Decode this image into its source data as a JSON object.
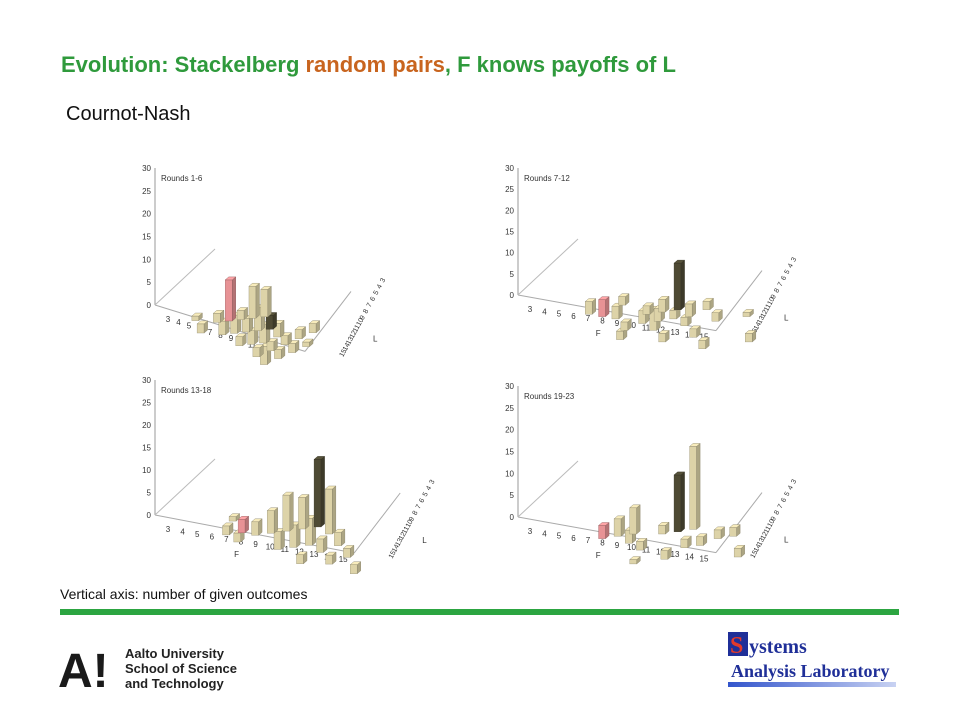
{
  "title": {
    "part1": "Evolution: Stackelberg ",
    "part2": "random pairs",
    "part3": ", F knows payoffs of L"
  },
  "subtitle": "Cournot-Nash",
  "footnote": "Vertical axis: number of given outcomes",
  "colors": {
    "title": "#2f9a3c",
    "title_highlight": "#c8641e",
    "bar_regular": "#ddd3a8",
    "bar_dark": "#4e4a34",
    "bar_highlight": "#e79295",
    "divider": "#2ca541"
  },
  "logos": {
    "aalto": {
      "mark": "A!",
      "lines": [
        "Aalto University",
        "School of Science",
        "and Technology"
      ]
    },
    "sal": {
      "big_letter": "S",
      "line1_rest": "ystems",
      "line2": "Analysis Laboratory"
    }
  },
  "chart_data": [
    {
      "type": "bar3d",
      "title": "Rounds 1-6",
      "xlabel": "",
      "ylabel": "L",
      "zlim": [
        0,
        30
      ],
      "z_ticks": [
        0,
        5,
        10,
        15,
        20,
        25,
        30
      ],
      "x_ticks": [
        "3",
        "4",
        "5",
        "6",
        "7",
        "8",
        "9",
        "10",
        "11",
        "12"
      ],
      "y_ticks": [
        "15",
        "14",
        "13",
        "12",
        "11",
        "10",
        "9",
        "8",
        "7",
        "6",
        "5",
        "4",
        "3"
      ],
      "bars": [
        {
          "f": 4,
          "l": 9,
          "v": 1
        },
        {
          "f": 5,
          "l": 11,
          "v": 2
        },
        {
          "f": 6,
          "l": 8,
          "v": 2
        },
        {
          "f": 7,
          "l": 7,
          "v": 9,
          "kind": "highlight"
        },
        {
          "f": 7,
          "l": 10,
          "v": 3
        },
        {
          "f": 8,
          "l": 6,
          "v": 2
        },
        {
          "f": 8,
          "l": 9,
          "v": 4
        },
        {
          "f": 9,
          "l": 5,
          "v": 7
        },
        {
          "f": 9,
          "l": 8,
          "v": 3
        },
        {
          "f": 9,
          "l": 11,
          "v": 2
        },
        {
          "f": 10,
          "l": 4,
          "v": 6
        },
        {
          "f": 10,
          "l": 7,
          "v": 5
        },
        {
          "f": 10,
          "l": 10,
          "v": 3
        },
        {
          "f": 11,
          "l": 6,
          "v": 3,
          "kind": "dark"
        },
        {
          "f": 11,
          "l": 9,
          "v": 4
        },
        {
          "f": 11,
          "l": 12,
          "v": 2
        },
        {
          "f": 12,
          "l": 7,
          "v": 3
        },
        {
          "f": 12,
          "l": 10,
          "v": 2
        },
        {
          "f": 12,
          "l": 13,
          "v": 4
        },
        {
          "f": 13,
          "l": 8,
          "v": 2
        },
        {
          "f": 13,
          "l": 11,
          "v": 2
        },
        {
          "f": 14,
          "l": 6,
          "v": 2
        },
        {
          "f": 14,
          "l": 9,
          "v": 2
        },
        {
          "f": 15,
          "l": 4,
          "v": 2
        },
        {
          "f": 15,
          "l": 7,
          "v": 1
        }
      ]
    },
    {
      "type": "bar3d",
      "title": "Rounds 7-12",
      "xlabel": "F",
      "ylabel": "L",
      "zlim": [
        0,
        30
      ],
      "z_ticks": [
        0,
        5,
        10,
        15,
        20,
        25,
        30
      ],
      "x_ticks": [
        "3",
        "4",
        "5",
        "6",
        "7",
        "8",
        "9",
        "10",
        "11",
        "12",
        "13",
        "14",
        "15"
      ],
      "y_ticks": [
        "15",
        "14",
        "13",
        "12",
        "11",
        "10",
        "9",
        "8",
        "7",
        "6",
        "5",
        "4",
        "3"
      ],
      "bars": [
        {
          "f": 6,
          "l": 9,
          "v": 3
        },
        {
          "f": 7,
          "l": 9,
          "v": 4,
          "kind": "highlight"
        },
        {
          "f": 8,
          "l": 6,
          "v": 2
        },
        {
          "f": 8,
          "l": 9,
          "v": 3
        },
        {
          "f": 9,
          "l": 11,
          "v": 2
        },
        {
          "f": 9,
          "l": 13,
          "v": 2
        },
        {
          "f": 10,
          "l": 7,
          "v": 2
        },
        {
          "f": 10,
          "l": 9,
          "v": 3
        },
        {
          "f": 11,
          "l": 6,
          "v": 3
        },
        {
          "f": 11,
          "l": 8,
          "v": 3
        },
        {
          "f": 11,
          "l": 10,
          "v": 5
        },
        {
          "f": 12,
          "l": 5,
          "v": 11,
          "kind": "dark"
        },
        {
          "f": 12,
          "l": 7,
          "v": 2
        },
        {
          "f": 12,
          "l": 12,
          "v": 2
        },
        {
          "f": 13,
          "l": 6,
          "v": 3
        },
        {
          "f": 13,
          "l": 8,
          "v": 2
        },
        {
          "f": 14,
          "l": 4,
          "v": 2
        },
        {
          "f": 14,
          "l": 10,
          "v": 2
        },
        {
          "f": 15,
          "l": 6,
          "v": 2
        },
        {
          "f": 15,
          "l": 12,
          "v": 2
        },
        {
          "f": 17,
          "l": 4,
          "v": 1
        },
        {
          "f": 18,
          "l": 9,
          "v": 2
        }
      ]
    },
    {
      "type": "bar3d",
      "title": "Rounds 13-18",
      "xlabel": "F",
      "ylabel": "L",
      "zlim": [
        0,
        30
      ],
      "z_ticks": [
        0,
        5,
        10,
        15,
        20,
        25,
        30
      ],
      "x_ticks": [
        "3",
        "4",
        "5",
        "6",
        "7",
        "8",
        "9",
        "10",
        "11",
        "12",
        "13",
        "14",
        "15"
      ],
      "y_ticks": [
        "15",
        "14",
        "13",
        "12",
        "11",
        "10",
        "9",
        "8",
        "7",
        "6",
        "5",
        "4",
        "3"
      ],
      "bars": [
        {
          "f": 6,
          "l": 6,
          "v": 1
        },
        {
          "f": 6,
          "l": 9,
          "v": 2
        },
        {
          "f": 7,
          "l": 10,
          "v": 2
        },
        {
          "f": 7,
          "l": 8,
          "v": 3,
          "kind": "highlight"
        },
        {
          "f": 8,
          "l": 8,
          "v": 3
        },
        {
          "f": 9,
          "l": 7,
          "v": 5
        },
        {
          "f": 10,
          "l": 6,
          "v": 8
        },
        {
          "f": 10,
          "l": 10,
          "v": 4
        },
        {
          "f": 11,
          "l": 5,
          "v": 7
        },
        {
          "f": 11,
          "l": 9,
          "v": 5
        },
        {
          "f": 12,
          "l": 4,
          "v": 15,
          "kind": "dark"
        },
        {
          "f": 12,
          "l": 8,
          "v": 6
        },
        {
          "f": 12,
          "l": 12,
          "v": 2
        },
        {
          "f": 13,
          "l": 5,
          "v": 10
        },
        {
          "f": 13,
          "l": 9,
          "v": 3
        },
        {
          "f": 14,
          "l": 7,
          "v": 3
        },
        {
          "f": 14,
          "l": 11,
          "v": 2
        },
        {
          "f": 15,
          "l": 9,
          "v": 2
        },
        {
          "f": 16,
          "l": 12,
          "v": 2
        }
      ]
    },
    {
      "type": "bar3d",
      "title": "Rounds 19-23",
      "xlabel": "F",
      "ylabel": "L",
      "zlim": [
        0,
        30
      ],
      "z_ticks": [
        0,
        5,
        10,
        15,
        20,
        25,
        30
      ],
      "x_ticks": [
        "3",
        "4",
        "5",
        "6",
        "7",
        "8",
        "9",
        "10",
        "11",
        "12",
        "13",
        "14",
        "15"
      ],
      "y_ticks": [
        "15",
        "14",
        "13",
        "12",
        "11",
        "10",
        "9",
        "8",
        "7",
        "6",
        "5",
        "4",
        "3"
      ],
      "bars": [
        {
          "f": 7,
          "l": 9,
          "v": 3,
          "kind": "highlight"
        },
        {
          "f": 8,
          "l": 8,
          "v": 4
        },
        {
          "f": 9,
          "l": 7,
          "v": 6
        },
        {
          "f": 9,
          "l": 9,
          "v": 3
        },
        {
          "f": 10,
          "l": 13,
          "v": 1
        },
        {
          "f": 10,
          "l": 10,
          "v": 2
        },
        {
          "f": 11,
          "l": 6,
          "v": 2
        },
        {
          "f": 12,
          "l": 5,
          "v": 13,
          "kind": "dark"
        },
        {
          "f": 12,
          "l": 11,
          "v": 2
        },
        {
          "f": 13,
          "l": 4,
          "v": 19
        },
        {
          "f": 13,
          "l": 8,
          "v": 2
        },
        {
          "f": 14,
          "l": 7,
          "v": 2
        },
        {
          "f": 15,
          "l": 5,
          "v": 2
        },
        {
          "f": 16,
          "l": 4,
          "v": 2
        },
        {
          "f": 17,
          "l": 8,
          "v": 2
        }
      ]
    }
  ]
}
